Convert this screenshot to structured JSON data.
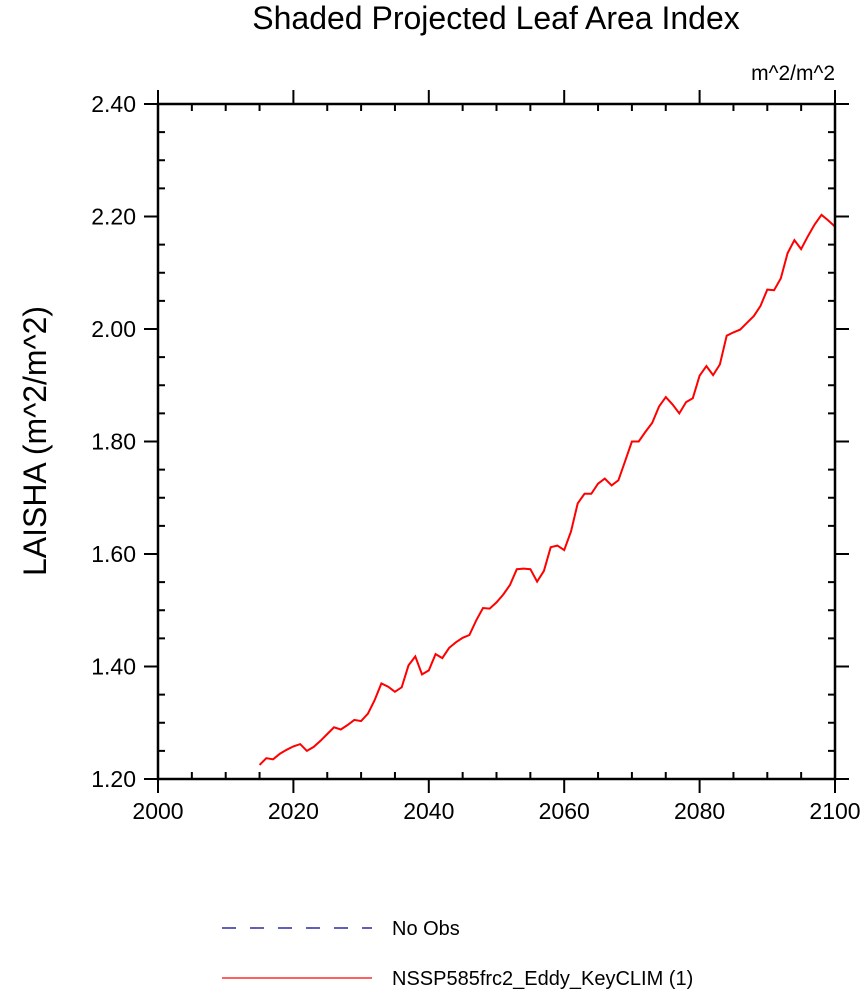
{
  "chart_data": {
    "type": "line",
    "title": "Shaded Projected Leaf Area Index",
    "units_label": "m^2/m^2",
    "ylabel": "LAISHA  (m^2/m^2)",
    "xlabel": "",
    "xlim": [
      2000,
      2100
    ],
    "ylim": [
      1.2,
      2.4
    ],
    "xticks": [
      "2000",
      "2020",
      "2040",
      "2060",
      "2080",
      "2100"
    ],
    "yticks": [
      "1.20",
      "1.40",
      "1.60",
      "1.80",
      "2.00",
      "2.20",
      "2.40"
    ],
    "grid": false,
    "legend_placement": "bottom",
    "series": [
      {
        "name": "No Obs",
        "color": "#00008b",
        "style": "dashed",
        "x": [],
        "values": []
      },
      {
        "name": "NSSP585frc2_Eddy_KeyCLIM (1)",
        "color": "#ff0000",
        "style": "solid",
        "x_start": 2015,
        "values": [
          1.225,
          1.237,
          1.235,
          1.245,
          1.252,
          1.258,
          1.262,
          1.25,
          1.257,
          1.268,
          1.28,
          1.292,
          1.288,
          1.296,
          1.305,
          1.303,
          1.316,
          1.34,
          1.37,
          1.364,
          1.355,
          1.363,
          1.402,
          1.418,
          1.386,
          1.393,
          1.422,
          1.415,
          1.433,
          1.443,
          1.451,
          1.456,
          1.482,
          1.504,
          1.503,
          1.514,
          1.528,
          1.545,
          1.573,
          1.574,
          1.573,
          1.551,
          1.57,
          1.612,
          1.615,
          1.607,
          1.64,
          1.69,
          1.707,
          1.707,
          1.725,
          1.734,
          1.722,
          1.731,
          1.765,
          1.8,
          1.8,
          1.817,
          1.833,
          1.862,
          1.879,
          1.866,
          1.85,
          1.87,
          1.877,
          1.917,
          1.934,
          1.918,
          1.937,
          1.988,
          1.994,
          1.999,
          2.011,
          2.023,
          2.041,
          2.07,
          2.069,
          2.09,
          2.135,
          2.158,
          2.142,
          2.165,
          2.186,
          2.203,
          2.193,
          2.182
        ]
      }
    ]
  }
}
